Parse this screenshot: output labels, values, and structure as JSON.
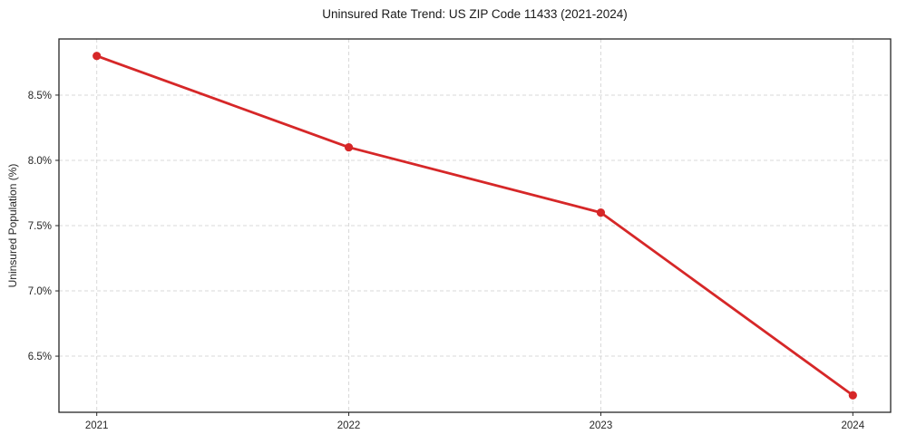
{
  "chart_data": {
    "type": "line",
    "title": "Uninsured Rate Trend: US ZIP Code 11433 (2021-2024)",
    "xlabel": "",
    "ylabel": "Uninsured Population (%)",
    "categories": [
      "2021",
      "2022",
      "2023",
      "2024"
    ],
    "x": [
      2021,
      2022,
      2023,
      2024
    ],
    "series": [
      {
        "name": "Uninsured Rate",
        "values": [
          8.8,
          8.1,
          7.6,
          6.2
        ]
      }
    ],
    "yticks": [
      6.5,
      7.0,
      7.5,
      8.0,
      8.5
    ],
    "ytick_labels": [
      "6.5%",
      "7.0%",
      "7.5%",
      "8.0%",
      "8.5%"
    ],
    "ylim": [
      6.07,
      8.93
    ],
    "xlim": [
      2020.85,
      2024.15
    ],
    "grid": "dashed",
    "legend_position": "none",
    "line_color": "#d62728",
    "marker": "circle",
    "grid_color": "#d8d8d8",
    "axis_color": "#262626",
    "background_color": "#ffffff"
  }
}
